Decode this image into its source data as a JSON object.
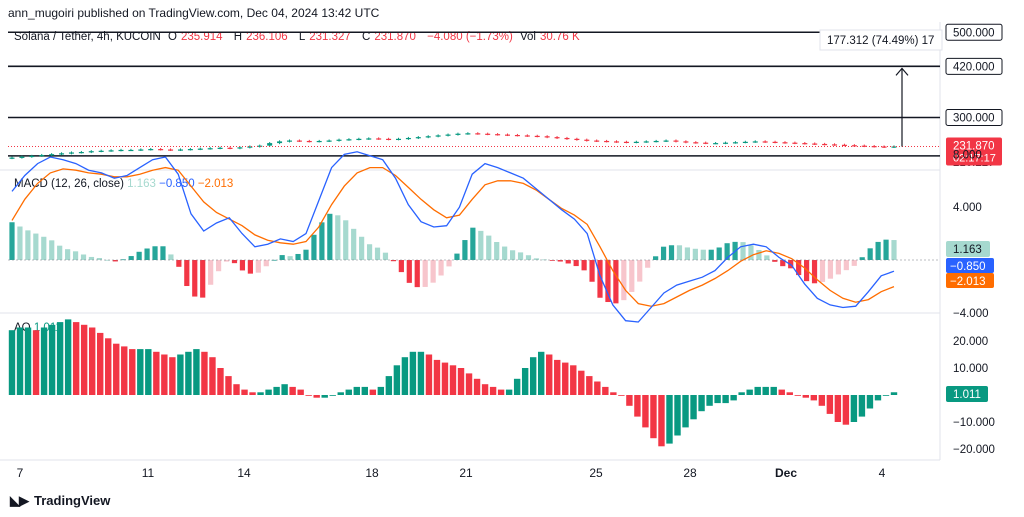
{
  "header": {
    "published": "ann_mugoiri published on TradingView.com, Dec 04, 2024 13:42 UTC"
  },
  "main_legend": {
    "symbol": "Solana / Tether, 4h, KUCOIN",
    "o_label": "O",
    "o": "235.914",
    "h_label": "H",
    "h": "236.106",
    "l_label": "L",
    "l": "231.327",
    "c_label": "C",
    "c": "231.870",
    "change": "−4.080 (−1.73%)",
    "vol_label": "Vol",
    "vol": "30.76 K"
  },
  "measure_label": "177.312 (74.49%) 17",
  "price_axis": {
    "labels": [
      "500.000",
      "420.000",
      "300.000",
      "231.870",
      "02:17:17",
      "210.227"
    ],
    "last_price": "231.870",
    "countdown": "02:17:17"
  },
  "macd": {
    "title": "MACD (12, 26, close)",
    "hist": "1.163",
    "macd": "−0.850",
    "signal": "−2.013",
    "axis_labels": [
      "8.000",
      "4.000",
      "−4.000"
    ]
  },
  "ao": {
    "title": "AO",
    "value": "1.011",
    "axis_labels": [
      "20.000",
      "10.000",
      "−10.000",
      "−20.000"
    ]
  },
  "time_axis": [
    "7",
    "11",
    "14",
    "18",
    "21",
    "25",
    "28",
    "Dec",
    "4"
  ],
  "footer": {
    "brand": "TradingView"
  },
  "colors": {
    "up": "#089981",
    "down": "#f23645",
    "up_light": "#a6d9cf",
    "down_light": "#f7c5cc",
    "macd_line": "#2962ff",
    "signal_line": "#ff6d00"
  },
  "chart_data": [
    {
      "type": "candlestick",
      "title": "Solana / Tether, 4h, KUCOIN",
      "ylim": [
        205,
        510
      ],
      "horizontal_levels": [
        500,
        420,
        300,
        210
      ],
      "last_price": 231.87,
      "close_path": [
        206,
        208,
        210,
        212,
        214,
        216,
        218,
        219,
        221,
        222,
        223,
        224,
        224,
        225,
        226,
        225,
        224,
        225,
        226,
        227,
        228,
        229,
        228,
        230,
        232,
        234,
        240,
        244,
        246,
        245,
        244,
        245,
        246,
        248,
        249,
        250,
        251,
        250,
        249,
        250,
        252,
        254,
        256,
        258,
        260,
        262,
        263,
        262,
        261,
        260,
        259,
        258,
        257,
        256,
        254,
        252,
        250,
        248,
        246,
        245,
        244,
        243,
        242,
        243,
        244,
        245,
        246,
        244,
        242,
        241,
        240,
        240,
        241,
        242,
        243,
        244,
        243,
        242,
        241,
        240,
        239,
        238,
        237,
        236,
        235,
        234,
        233,
        232,
        231,
        232
      ]
    },
    {
      "type": "line",
      "title": "MACD (12, 26, close)",
      "ylim": [
        -6,
        10
      ],
      "series": [
        {
          "name": "MACD",
          "values": [
            5.2,
            6.4,
            7.3,
            7.8,
            7.6,
            7.3,
            6.8,
            6.6,
            6.2,
            6.4,
            7.0,
            7.6,
            7.8,
            6.5,
            3.5,
            2.2,
            2.8,
            3.2,
            2.0,
            1.0,
            1.2,
            1.6,
            1.4,
            2.0,
            4.5,
            7.0,
            8.0,
            8.2,
            7.9,
            7.6,
            6.2,
            4.2,
            2.9,
            2.5,
            2.6,
            4.0,
            6.5,
            7.3,
            7.0,
            6.6,
            6.2,
            5.4,
            4.6,
            3.8,
            3.1,
            2.0,
            -1.2,
            -3.4,
            -4.6,
            -4.7,
            -3.6,
            -2.5,
            -1.9,
            -1.6,
            -1.3,
            -0.8,
            0.2,
            1.0,
            1.2,
            1.0,
            0.2,
            -0.4,
            -1.8,
            -2.9,
            -3.4,
            -3.6,
            -3.5,
            -2.4,
            -1.2,
            -0.85
          ]
        },
        {
          "name": "Signal",
          "values": [
            3.0,
            4.6,
            5.8,
            6.6,
            6.9,
            6.8,
            6.6,
            6.5,
            6.3,
            6.3,
            6.5,
            6.8,
            7.0,
            6.8,
            5.6,
            4.4,
            3.6,
            3.1,
            2.6,
            1.9,
            1.5,
            1.3,
            1.2,
            1.4,
            2.5,
            4.2,
            5.6,
            6.6,
            7.0,
            7.0,
            6.4,
            5.5,
            4.6,
            3.8,
            3.2,
            3.4,
            4.6,
            5.7,
            6.0,
            6.0,
            5.8,
            5.3,
            4.6,
            3.9,
            3.4,
            2.7,
            1.0,
            -0.8,
            -2.3,
            -3.3,
            -3.5,
            -3.3,
            -2.8,
            -2.3,
            -1.9,
            -1.4,
            -0.8,
            -0.1,
            0.4,
            0.7,
            0.5,
            0.1,
            -0.6,
            -1.5,
            -2.3,
            -2.9,
            -3.2,
            -3.0,
            -2.4,
            -2.013
          ]
        }
      ],
      "histogram_last": 1.163
    },
    {
      "type": "bar",
      "title": "AO",
      "ylim": [
        -22,
        28
      ],
      "values": [
        24,
        25,
        25,
        24,
        25,
        26,
        27,
        28,
        27,
        26,
        25,
        23,
        21,
        19,
        18,
        17,
        17,
        17,
        16,
        15,
        14,
        15,
        16,
        17,
        16,
        14,
        10,
        7,
        4,
        2,
        1,
        1,
        2,
        3,
        4,
        3,
        2,
        0,
        -1,
        -1,
        0,
        1,
        2,
        3,
        3,
        2,
        3,
        7,
        11,
        14,
        16,
        16,
        15,
        13,
        12,
        11,
        10,
        8,
        6,
        4,
        3,
        2,
        2,
        6,
        10,
        14,
        16,
        15,
        13,
        12,
        11,
        9,
        7,
        5,
        3,
        1,
        0,
        -4,
        -8,
        -12,
        -16,
        -19,
        -18,
        -15,
        -12,
        -9,
        -6,
        -4,
        -3,
        -3,
        -2,
        1,
        2,
        3,
        3,
        3,
        2,
        1,
        0,
        -1,
        -2,
        -4,
        -7,
        -10,
        -11,
        -10,
        -8,
        -5,
        -2,
        0,
        1.011
      ]
    }
  ]
}
